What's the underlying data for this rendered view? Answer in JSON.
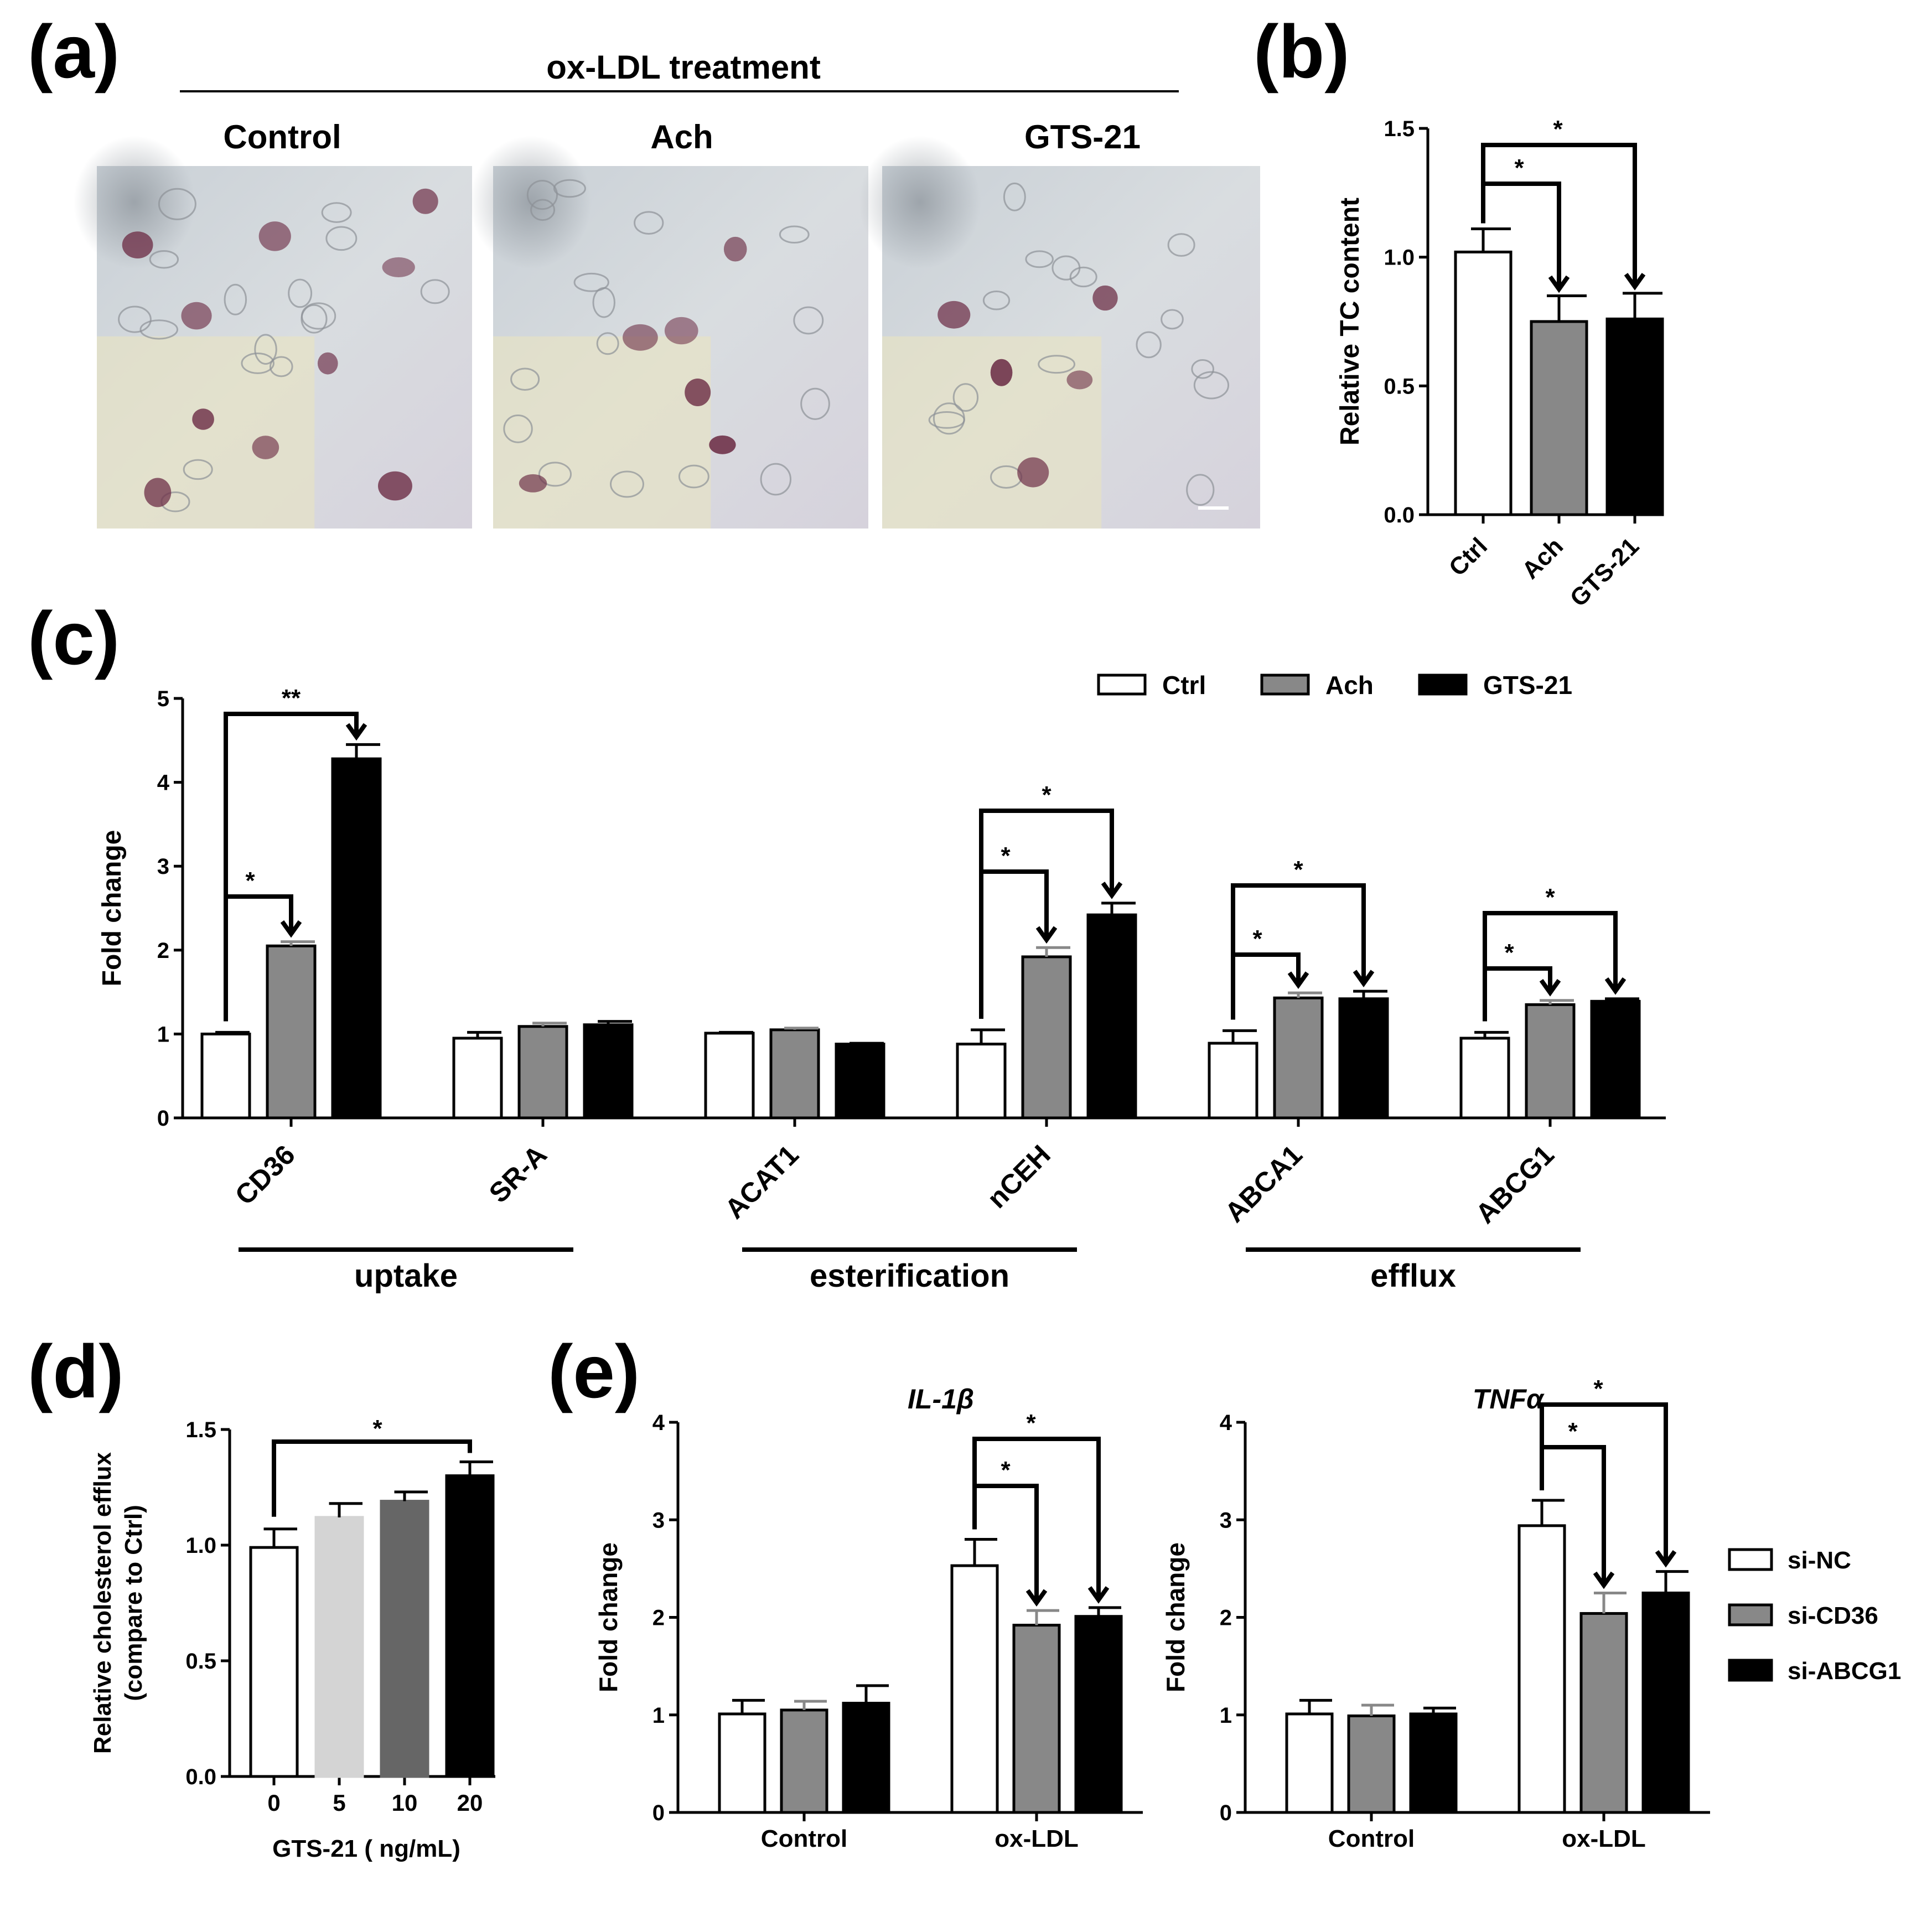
{
  "panel_labels": [
    "(a)",
    "(b)",
    "(c)",
    "(d)",
    "(e)"
  ],
  "panel_a": {
    "header": "ox-LDL treatment",
    "images": [
      {
        "label": "Control",
        "stained_cells": 10
      },
      {
        "label": "Ach",
        "stained_cells": 6
      },
      {
        "label": "GTS-21",
        "stained_cells": 5
      }
    ]
  },
  "colors": {
    "ctrl": "#ffffff",
    "ach": "#888888",
    "gts": "#000000",
    "d_5": "#d4d4d4",
    "d_10": "#666666",
    "d_20": "#000000"
  },
  "chart_data": [
    {
      "panel": "b",
      "type": "bar",
      "ylabel": "Relative TC content",
      "categories": [
        "Ctrl",
        "Ach",
        "GTS-21"
      ],
      "values": [
        1.02,
        0.75,
        0.76
      ],
      "errors": [
        0.09,
        0.1,
        0.1
      ],
      "ylim": [
        0,
        1.5
      ],
      "yticks": [
        "0.0",
        "0.5",
        "1.0",
        "1.5"
      ],
      "significance": [
        {
          "from": 0,
          "to": 1,
          "label": "*"
        },
        {
          "from": 0,
          "to": 2,
          "label": "*"
        }
      ]
    },
    {
      "panel": "c",
      "type": "bar",
      "ylabel": "Fold change",
      "categories": [
        "CD36",
        "SR-A",
        "ACAT1",
        "nCEH",
        "ABCA1",
        "ABCG1"
      ],
      "series": [
        {
          "name": "Ctrl",
          "values": [
            1.0,
            0.95,
            1.01,
            0.88,
            0.89,
            0.95
          ],
          "errors": [
            0.02,
            0.07,
            0.01,
            0.17,
            0.15,
            0.07
          ]
        },
        {
          "name": "Ach",
          "values": [
            2.05,
            1.09,
            1.05,
            1.92,
            1.43,
            1.35
          ],
          "errors": [
            0.05,
            0.04,
            0.02,
            0.11,
            0.06,
            0.05
          ]
        },
        {
          "name": "GTS-21",
          "values": [
            4.28,
            1.11,
            0.88,
            2.42,
            1.42,
            1.39
          ],
          "errors": [
            0.17,
            0.04,
            0.01,
            0.14,
            0.09,
            0.03
          ]
        }
      ],
      "ylim": [
        0,
        5
      ],
      "yticks": [
        "0",
        "1",
        "2",
        "3",
        "4",
        "5"
      ],
      "legend": "top-right",
      "groups": [
        {
          "label": "uptake",
          "from": 0,
          "to": 1
        },
        {
          "label": "esterification",
          "from": 2,
          "to": 3
        },
        {
          "label": "efflux",
          "from": 4,
          "to": 5
        }
      ],
      "significance": [
        {
          "category": 0,
          "from": 0,
          "to": 1,
          "label": "*"
        },
        {
          "category": 0,
          "from": 0,
          "to": 2,
          "label": "**"
        },
        {
          "category": 3,
          "from": 0,
          "to": 1,
          "label": "*"
        },
        {
          "category": 3,
          "from": 0,
          "to": 2,
          "label": "*"
        },
        {
          "category": 4,
          "from": 0,
          "to": 1,
          "label": "*"
        },
        {
          "category": 4,
          "from": 0,
          "to": 2,
          "label": "*"
        },
        {
          "category": 5,
          "from": 0,
          "to": 1,
          "label": "*"
        },
        {
          "category": 5,
          "from": 0,
          "to": 2,
          "label": "*"
        }
      ]
    },
    {
      "panel": "d",
      "type": "bar",
      "ylabel_lines": [
        "Relative cholesterol efflux",
        "(compare to Ctrl)"
      ],
      "xlabel": "GTS-21 ( ng/mL)",
      "categories": [
        "0",
        "5",
        "10",
        "20"
      ],
      "values": [
        0.99,
        1.12,
        1.19,
        1.3
      ],
      "errors": [
        0.08,
        0.06,
        0.04,
        0.06
      ],
      "ylim": [
        0,
        1.5
      ],
      "yticks": [
        "0.0",
        "0.5",
        "1.0",
        "1.5"
      ],
      "significance": [
        {
          "from": 0,
          "to": 3,
          "label": "*"
        }
      ]
    },
    {
      "panel": "e1",
      "type": "bar",
      "title": "IL-1β",
      "ylabel": "Fold change",
      "categories": [
        "Control",
        "ox-LDL"
      ],
      "series": [
        {
          "name": "si-NC",
          "values": [
            1.01,
            2.53
          ],
          "errors": [
            0.14,
            0.27
          ]
        },
        {
          "name": "si-CD36",
          "values": [
            1.05,
            1.92
          ],
          "errors": [
            0.09,
            0.15
          ]
        },
        {
          "name": "si-ABCG1",
          "values": [
            1.12,
            2.01
          ],
          "errors": [
            0.18,
            0.09
          ]
        }
      ],
      "ylim": [
        0,
        4
      ],
      "yticks": [
        "0",
        "1",
        "2",
        "3",
        "4"
      ],
      "significance": [
        {
          "category": 1,
          "from": 0,
          "to": 1,
          "label": "*"
        },
        {
          "category": 1,
          "from": 0,
          "to": 2,
          "label": "*"
        }
      ]
    },
    {
      "panel": "e2",
      "type": "bar",
      "title": "TNFα",
      "ylabel": "Fold change",
      "categories": [
        "Control",
        "ox-LDL"
      ],
      "series": [
        {
          "name": "si-NC",
          "values": [
            1.01,
            2.94
          ],
          "errors": [
            0.14,
            0.26
          ]
        },
        {
          "name": "si-CD36",
          "values": [
            0.99,
            2.04
          ],
          "errors": [
            0.11,
            0.21
          ]
        },
        {
          "name": "si-ABCG1",
          "values": [
            1.01,
            2.25
          ],
          "errors": [
            0.06,
            0.22
          ]
        }
      ],
      "ylim": [
        0,
        4
      ],
      "yticks": [
        "0",
        "1",
        "2",
        "3",
        "4"
      ],
      "legend": "right",
      "significance": [
        {
          "category": 1,
          "from": 0,
          "to": 1,
          "label": "*"
        },
        {
          "category": 1,
          "from": 0,
          "to": 2,
          "label": "*"
        }
      ]
    }
  ]
}
